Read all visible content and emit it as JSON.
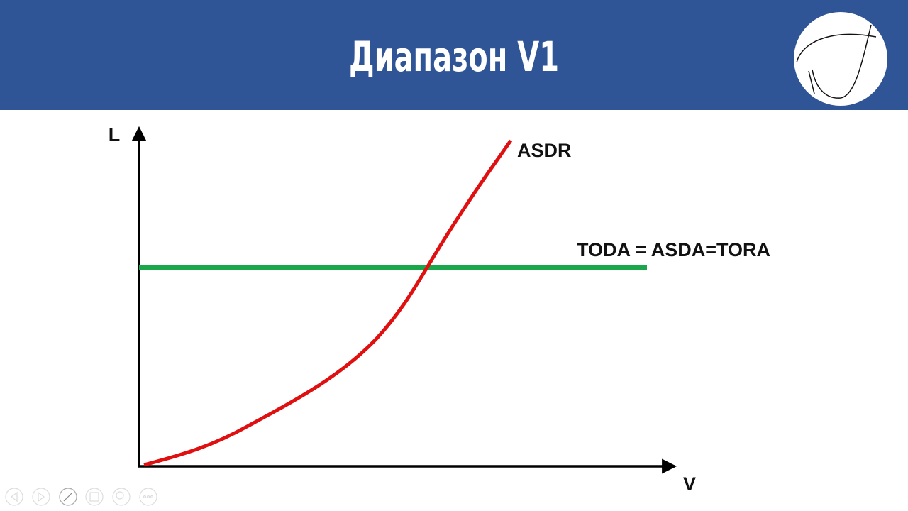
{
  "header": {
    "title": "Диапазон V1"
  },
  "diagram": {
    "y_axis_label": "L",
    "x_axis_label": "V",
    "curve_label": "ASDR",
    "line_label": "TODA = ASDA=TORA"
  }
}
